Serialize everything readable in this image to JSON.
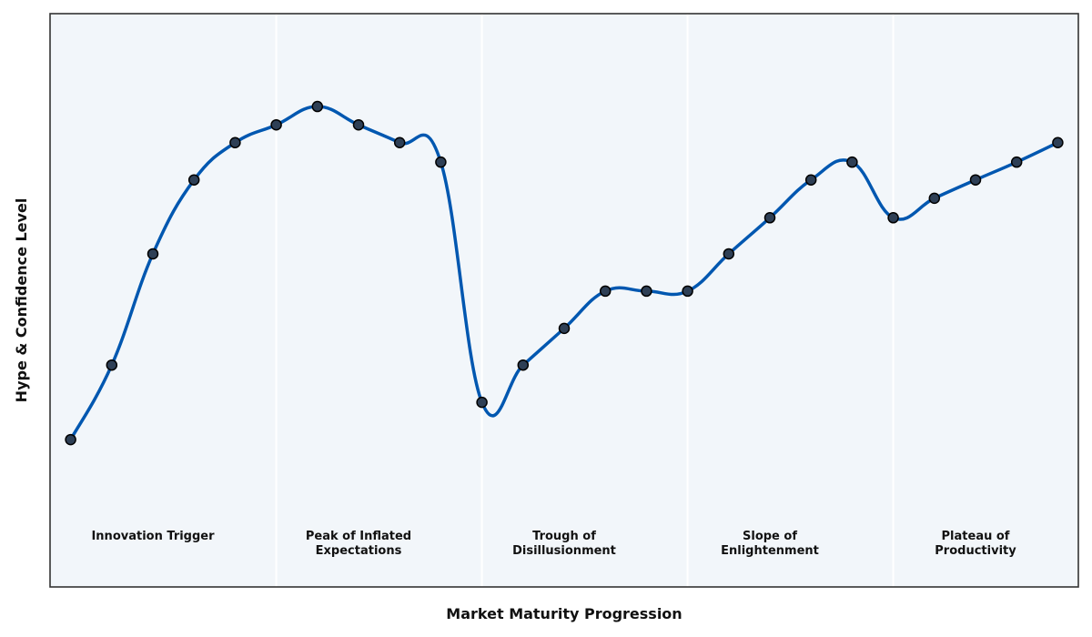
{
  "chart_data": {
    "type": "line",
    "x_label": "Market Maturity Progression",
    "y_label": "Hype & Confidence Level",
    "x": [
      0,
      1,
      2,
      3,
      4,
      5,
      6,
      7,
      8,
      9,
      10,
      11,
      12,
      13,
      14,
      15,
      16,
      17,
      18,
      19,
      20,
      21,
      22,
      23,
      24
    ],
    "series": [
      {
        "color": "#0057b0",
        "marker_color": "#2e3f55",
        "values": [
          25.7,
          38.7,
          58.1,
          71.0,
          77.5,
          80.6,
          83.8,
          80.6,
          77.5,
          74.1,
          32.2,
          38.7,
          45.1,
          51.6,
          51.6,
          51.6,
          58.1,
          64.4,
          71.0,
          74.1,
          64.4,
          67.8,
          71.0,
          74.1,
          77.5
        ]
      }
    ],
    "xlim": [
      -0.5,
      24.5
    ],
    "ylim": [
      0,
      100
    ],
    "background": "#f2f6fa",
    "phase_boundaries": [
      5,
      10,
      15,
      20
    ],
    "phases": [
      "Innovation Trigger",
      "Peak of Inflated\nExpectations",
      "Trough of\nDisillusionment",
      "Slope of\nEnlightenment",
      "Plateau of\nProductivity"
    ]
  }
}
